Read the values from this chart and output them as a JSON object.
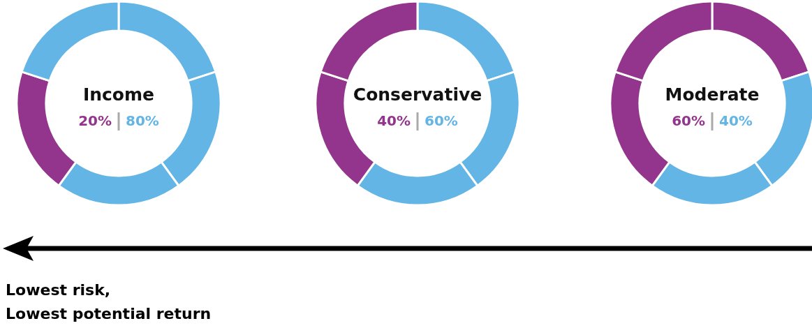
{
  "chart_data": [
    {
      "type": "donut",
      "title": "Income",
      "categories": [
        null,
        null,
        null,
        null,
        null
      ],
      "values": [
        20,
        20,
        20,
        20,
        20
      ],
      "colors": [
        "#62b5e5",
        "#62b5e5",
        "#62b5e5",
        "#93358d",
        "#62b5e5"
      ],
      "annotations": [
        "20%",
        "80%"
      ]
    },
    {
      "type": "donut",
      "title": "Conservative",
      "categories": [
        null,
        null,
        null,
        null,
        null
      ],
      "values": [
        20,
        20,
        20,
        20,
        20
      ],
      "colors": [
        "#62b5e5",
        "#62b5e5",
        "#62b5e5",
        "#93358d",
        "#93358d"
      ],
      "annotations": [
        "40%",
        "60%"
      ]
    },
    {
      "type": "donut",
      "title": "Moderate",
      "categories": [
        null,
        null,
        null,
        null,
        null
      ],
      "values": [
        20,
        20,
        20,
        20,
        20
      ],
      "colors": [
        "#93358d",
        "#62b5e5",
        "#62b5e5",
        "#93358d",
        "#93358d"
      ],
      "annotations": [
        "60%",
        "40%"
      ]
    },
    {
      "type": "other",
      "annotations": [
        "Lowest risk,",
        "Lowest potential return"
      ]
    }
  ]
}
